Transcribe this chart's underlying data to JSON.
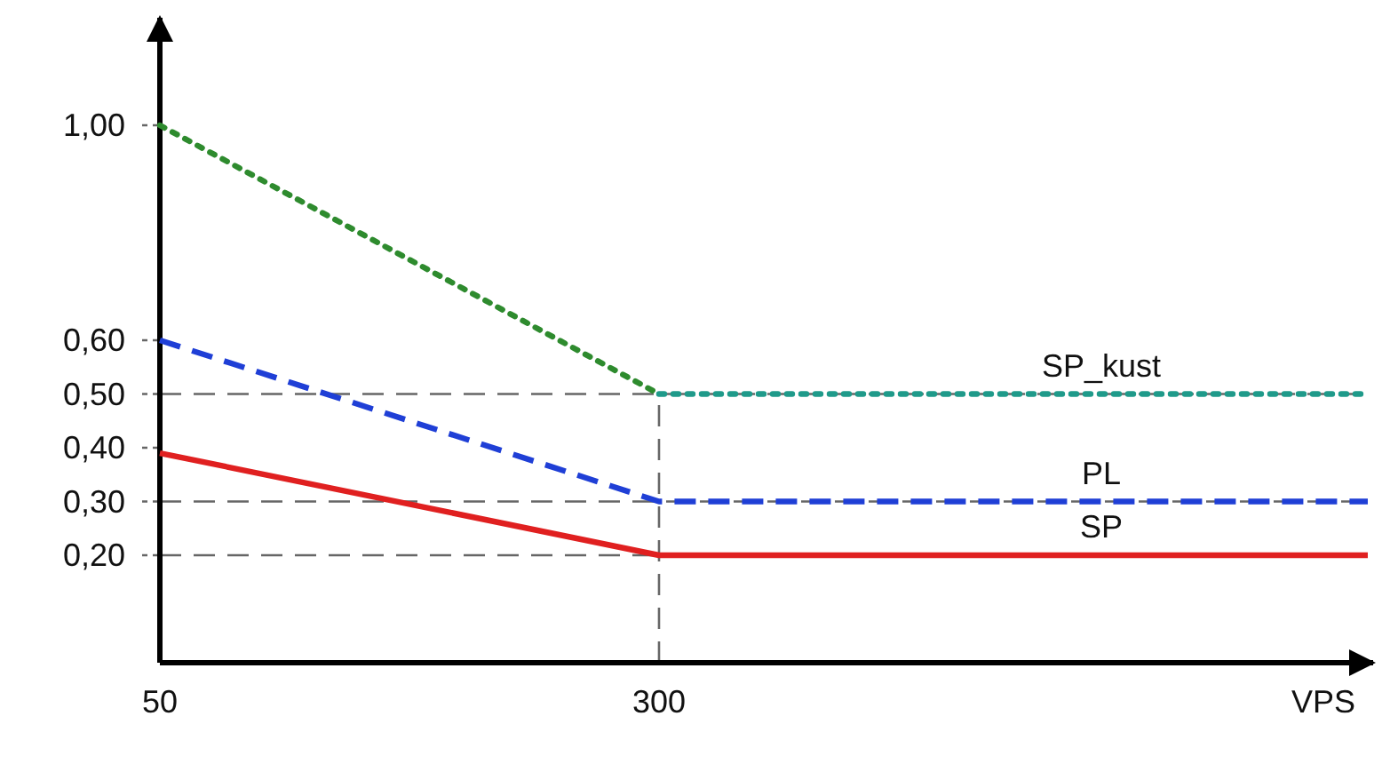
{
  "chart_data": {
    "type": "line",
    "xlabel": "VPS",
    "xlim": [
      50,
      655
    ],
    "ylim": [
      0,
      1.2
    ],
    "xticks": [
      50,
      300
    ],
    "yticks": [
      {
        "value": 1,
        "label": "1,00"
      },
      {
        "value": 0.6,
        "label": "0,60"
      },
      {
        "value": 0.5,
        "label": "0,50"
      },
      {
        "value": 0.4,
        "label": "0,40"
      },
      {
        "value": 0.3,
        "label": "0,30"
      },
      {
        "value": 0.2,
        "label": "0,20"
      }
    ],
    "series": [
      {
        "color": "#2e8b2e",
        "x": [
          50,
          300
        ],
        "values": [
          1,
          0.5
        ],
        "line_style": "dotted"
      },
      {
        "name": "SP_kust",
        "color": "#1f9a8a",
        "x": [
          300,
          655
        ],
        "values": [
          0.5,
          0.5
        ],
        "line_style": "dotted"
      },
      {
        "name": "PL",
        "color": "#1f3fd6",
        "x": [
          50,
          300,
          655
        ],
        "values": [
          0.6,
          0.3,
          0.3
        ],
        "line_style": "dashed"
      },
      {
        "name": "SP",
        "color": "#e02020",
        "x": [
          50,
          300,
          655
        ],
        "values": [
          0.39,
          0.2,
          0.2
        ],
        "line_style": "solid"
      }
    ],
    "ref_lines": [
      {
        "axis": "x",
        "value": 300,
        "color": "#666666",
        "line_style": "dashed"
      },
      {
        "axis": "y",
        "value": 0.5,
        "color": "#666666",
        "line_style": "dashed"
      },
      {
        "axis": "y",
        "value": 0.3,
        "color": "#666666",
        "line_style": "dashed"
      },
      {
        "axis": "y",
        "value": 0.2,
        "color": "#666666",
        "line_style": "dashed"
      }
    ],
    "grid": false,
    "legend": false,
    "marker": "none"
  }
}
